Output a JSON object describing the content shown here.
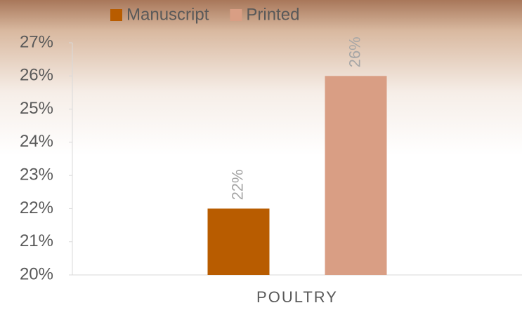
{
  "chart_data": {
    "type": "bar",
    "categories": [
      "POULTRY"
    ],
    "series": [
      {
        "name": "Manuscript",
        "color": "#b85c00",
        "values": [
          22
        ],
        "value_labels": [
          "22%"
        ]
      },
      {
        "name": "Printed",
        "color": "#d99e84",
        "values": [
          26
        ],
        "value_labels": [
          "26%"
        ]
      }
    ],
    "ylim": [
      20,
      27
    ],
    "yticks": [
      {
        "value": 20,
        "label": "20%"
      },
      {
        "value": 21,
        "label": "21%"
      },
      {
        "value": 22,
        "label": "22%"
      },
      {
        "value": 23,
        "label": "23%"
      },
      {
        "value": 24,
        "label": "24%"
      },
      {
        "value": 25,
        "label": "25%"
      },
      {
        "value": 26,
        "label": "26%"
      },
      {
        "value": 27,
        "label": "27%"
      }
    ],
    "legend": "top"
  }
}
